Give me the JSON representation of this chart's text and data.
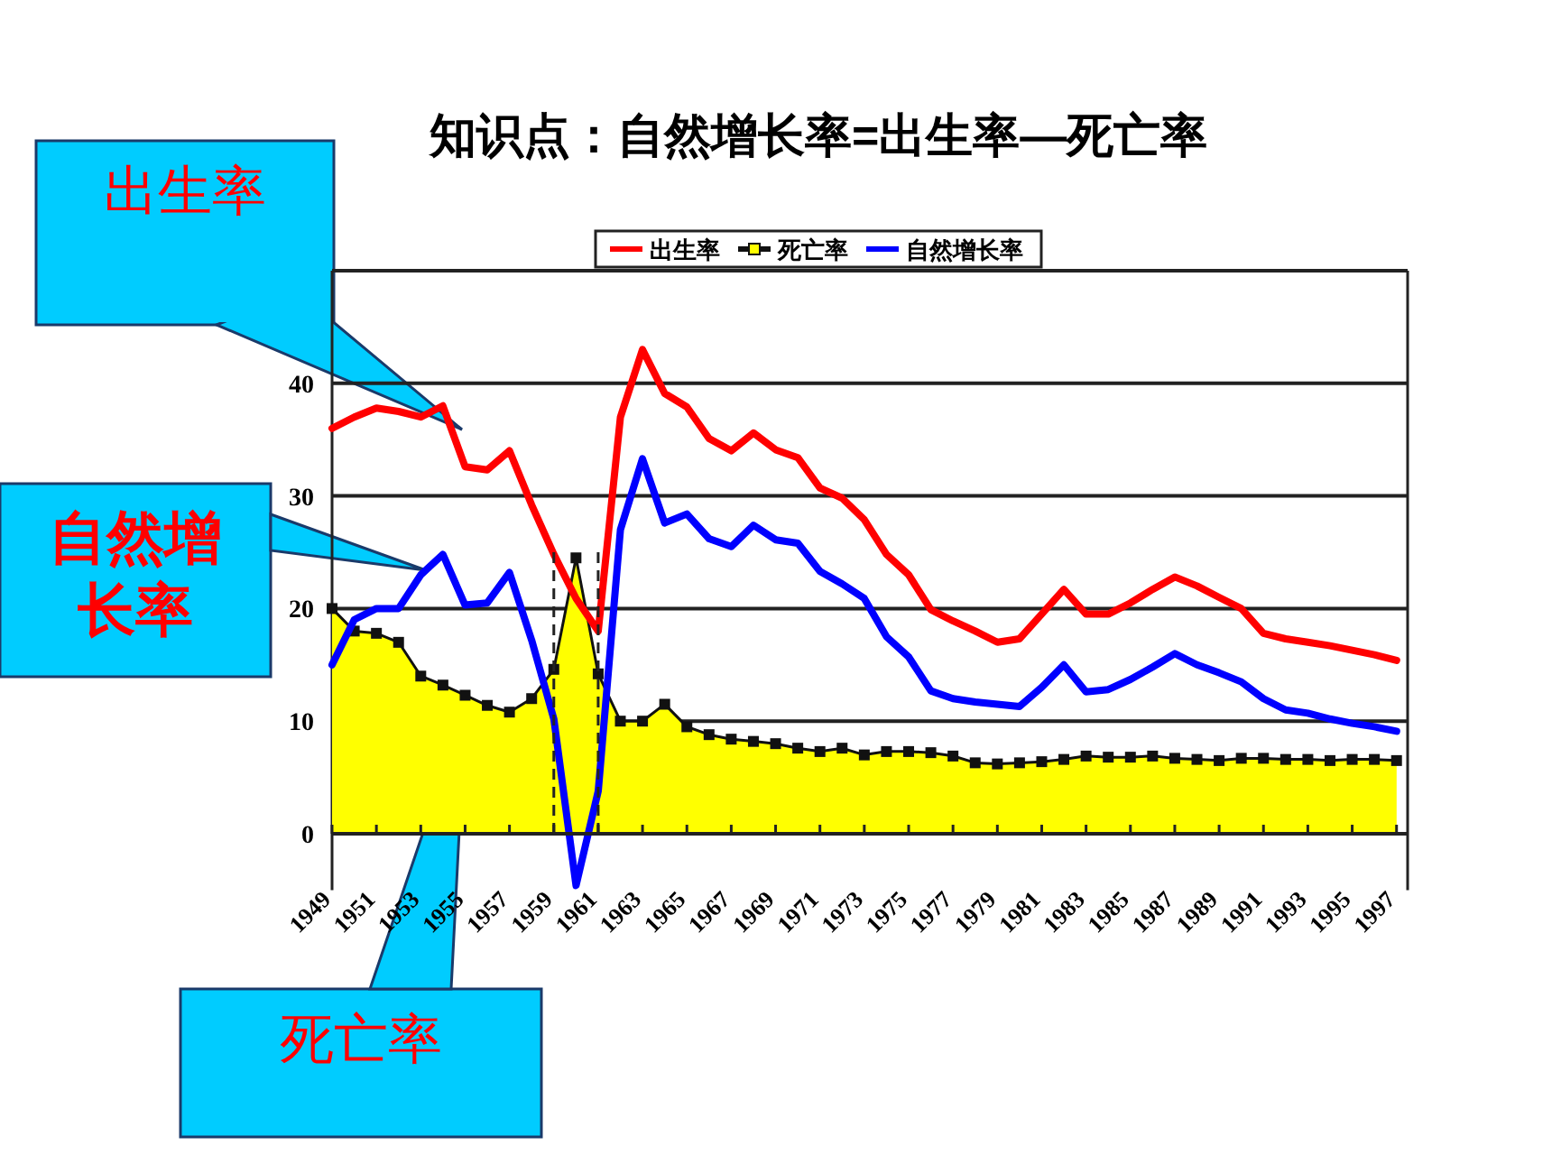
{
  "chart_data": {
    "type": "line",
    "title": "知识点：自然增长率=出生率—死亡率",
    "x": [
      1949,
      1950,
      1951,
      1952,
      1953,
      1954,
      1955,
      1956,
      1957,
      1958,
      1959,
      1960,
      1961,
      1962,
      1963,
      1964,
      1965,
      1966,
      1967,
      1968,
      1969,
      1970,
      1971,
      1972,
      1973,
      1974,
      1975,
      1976,
      1977,
      1978,
      1979,
      1980,
      1981,
      1982,
      1983,
      1984,
      1985,
      1986,
      1987,
      1988,
      1989,
      1990,
      1991,
      1992,
      1993,
      1994,
      1995,
      1996,
      1997
    ],
    "xlim": [
      1949,
      1997.5
    ],
    "xticks": [
      1949,
      1951,
      1953,
      1955,
      1957,
      1959,
      1961,
      1963,
      1965,
      1967,
      1969,
      1971,
      1973,
      1975,
      1977,
      1979,
      1981,
      1983,
      1985,
      1987,
      1989,
      1991,
      1993,
      1995,
      1997
    ],
    "ylim": [
      -5,
      50
    ],
    "yticks": [
      0,
      10,
      20,
      30,
      40
    ],
    "grid": "y",
    "legend": "top",
    "series": [
      {
        "name": "出生率",
        "color": "#ff0000",
        "values": [
          36.0,
          37.0,
          37.8,
          37.5,
          37.0,
          38.0,
          32.6,
          32.3,
          34.0,
          29.2,
          24.8,
          20.9,
          18.0,
          37.0,
          43.0,
          39.1,
          37.9,
          35.1,
          34.0,
          35.6,
          34.1,
          33.4,
          30.7,
          29.8,
          27.9,
          24.8,
          23.0,
          19.9,
          18.9,
          18.0,
          17.0,
          17.3,
          19.5,
          21.7,
          19.5,
          19.5,
          20.5,
          21.7,
          22.8,
          22.0,
          21.0,
          20.0,
          17.8,
          17.3,
          17.0,
          16.7,
          16.3,
          15.9,
          15.4
        ]
      },
      {
        "name": "死亡率",
        "type": "area",
        "color": "#ffff00",
        "marker": "square",
        "values": [
          20.0,
          18.0,
          17.8,
          17.0,
          14.0,
          13.2,
          12.3,
          11.4,
          10.8,
          12.0,
          14.6,
          24.5,
          14.2,
          10.0,
          10.0,
          11.5,
          9.5,
          8.8,
          8.4,
          8.2,
          8.0,
          7.6,
          7.3,
          7.6,
          7.0,
          7.3,
          7.3,
          7.2,
          6.9,
          6.3,
          6.2,
          6.3,
          6.4,
          6.6,
          6.9,
          6.8,
          6.8,
          6.9,
          6.7,
          6.6,
          6.5,
          6.7,
          6.7,
          6.6,
          6.6,
          6.5,
          6.6,
          6.6,
          6.5
        ]
      },
      {
        "name": "自然增长率",
        "color": "#0000ff",
        "values": [
          15.0,
          19.0,
          20.0,
          20.0,
          23.0,
          24.8,
          20.3,
          20.5,
          23.2,
          17.2,
          10.2,
          -4.6,
          3.8,
          27.0,
          33.3,
          27.6,
          28.4,
          26.2,
          25.5,
          27.4,
          26.1,
          25.8,
          23.3,
          22.2,
          20.9,
          17.5,
          15.7,
          12.7,
          12.0,
          11.7,
          11.5,
          11.3,
          13.0,
          15.0,
          12.6,
          12.8,
          13.7,
          14.8,
          16.0,
          15.0,
          14.3,
          13.5,
          12.0,
          11.0,
          10.7,
          10.2,
          9.8,
          9.5,
          9.1
        ]
      }
    ],
    "ref_lines": [
      {
        "axis": "x",
        "value": 1959,
        "line_style": "dashed"
      },
      {
        "axis": "x",
        "value": 1961,
        "line_style": "dashed"
      }
    ],
    "annotations": [
      "出生率",
      "自然增长率",
      "死亡率"
    ]
  }
}
